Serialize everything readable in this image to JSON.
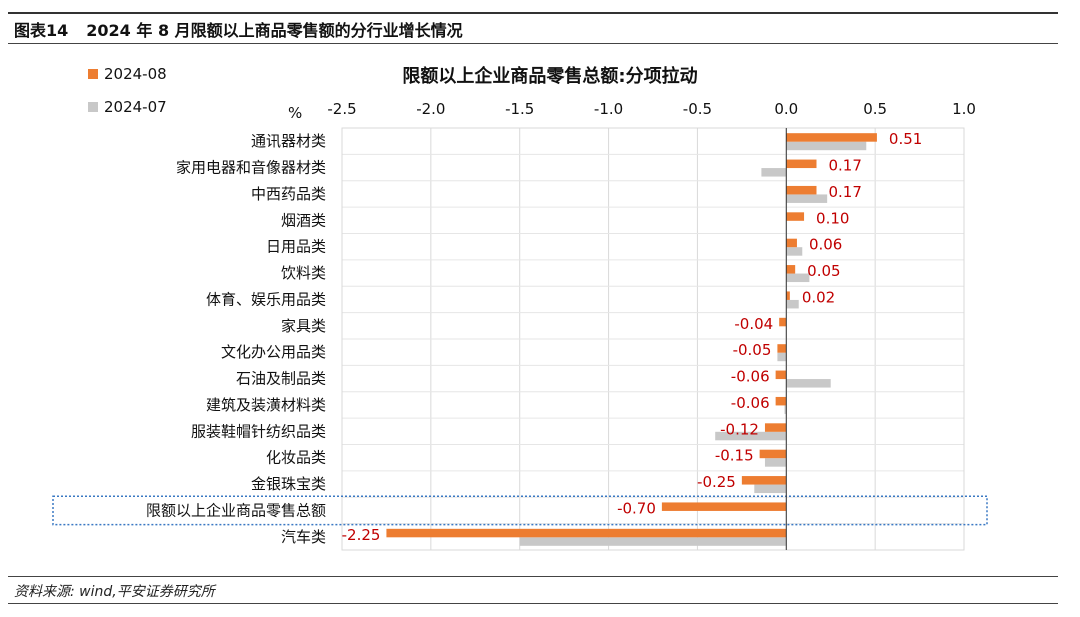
{
  "figure": {
    "label": "图表14",
    "title": "2024 年 8 月限额以上商品零售额的分行业增长情况",
    "source": "资料来源: wind,平安证券研究所"
  },
  "colors": {
    "current": "#ED7D31",
    "previous": "#C8C8C8",
    "negative_label": "#C00000",
    "highlight_border": "#3A78C3"
  },
  "chart_data": {
    "type": "bar",
    "orientation": "horizontal",
    "title": "限额以上企业商品零售总额:分项拉动",
    "unit": "%",
    "xlim": [
      -2.5,
      1.0
    ],
    "xticks": [
      "-2.5",
      "-2.0",
      "-1.5",
      "-1.0",
      "-0.5",
      "0.0",
      "0.5",
      "1.0"
    ],
    "xtick_values": [
      -2.5,
      -2.0,
      -1.5,
      -1.0,
      -0.5,
      0.0,
      0.5,
      1.0
    ],
    "grid": true,
    "legend_position": "top-left",
    "categories": [
      "通讯器材类",
      "家用电器和音像器材类",
      "中西药品类",
      "烟酒类",
      "日用品类",
      "饮料类",
      "体育、娱乐用品类",
      "家具类",
      "文化办公用品类",
      "石油及制品类",
      "建筑及装潢材料类",
      "服装鞋帽针纺织品类",
      "化妆品类",
      "金银珠宝类",
      "限额以上企业商品零售总额",
      "汽车类"
    ],
    "highlighted_category": "限额以上企业商品零售总额",
    "series": [
      {
        "name": "2024-08",
        "values": [
          0.51,
          0.17,
          0.17,
          0.1,
          0.06,
          0.05,
          0.02,
          -0.04,
          -0.05,
          -0.06,
          -0.06,
          -0.12,
          -0.15,
          -0.25,
          -0.7,
          -2.25
        ]
      },
      {
        "name": "2024-07",
        "values": [
          0.45,
          -0.14,
          0.23,
          0.0,
          0.09,
          0.13,
          0.07,
          0.0,
          -0.05,
          0.25,
          -0.01,
          -0.4,
          -0.12,
          -0.18,
          0.0,
          -1.5
        ]
      }
    ],
    "data_labels": [
      "0.51",
      "0.17",
      "0.17",
      "0.10",
      "0.06",
      "0.05",
      "0.02",
      "-0.04",
      "-0.05",
      "-0.06",
      "-0.06",
      "-0.12",
      "-0.15",
      "-0.25",
      "-0.70",
      "-2.25"
    ]
  }
}
